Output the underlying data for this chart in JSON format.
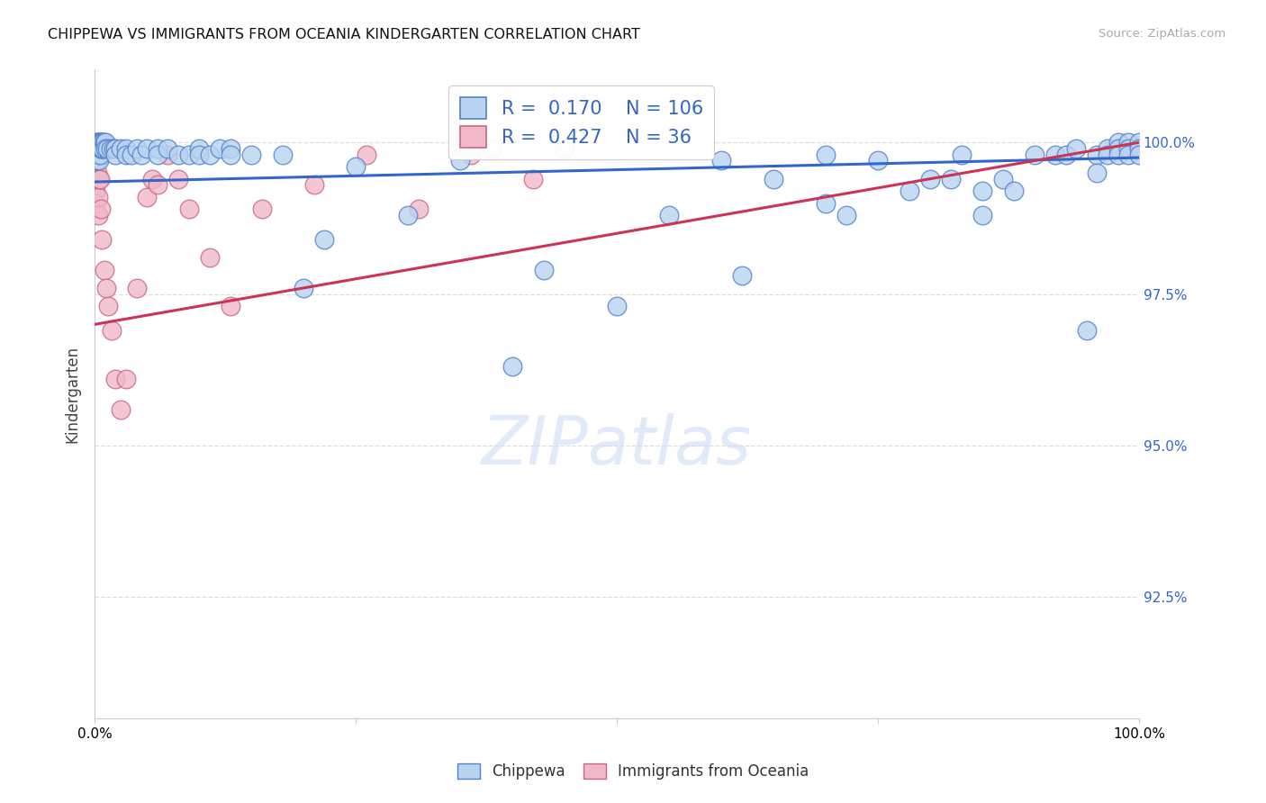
{
  "title": "CHIPPEWA VS IMMIGRANTS FROM OCEANIA KINDERGARTEN CORRELATION CHART",
  "source": "Source: ZipAtlas.com",
  "ylabel": "Kindergarten",
  "ytick_labels": [
    "100.0%",
    "97.5%",
    "95.0%",
    "92.5%"
  ],
  "ytick_values": [
    1.0,
    0.975,
    0.95,
    0.925
  ],
  "xmin": 0.0,
  "xmax": 1.0,
  "ymin": 0.905,
  "ymax": 1.012,
  "legend_blue_label": "Chippewa",
  "legend_pink_label": "Immigrants from Oceania",
  "R_blue": 0.17,
  "N_blue": 106,
  "R_pink": 0.427,
  "N_pink": 36,
  "blue_color": "#b8d4f0",
  "blue_edge_color": "#5580cc",
  "blue_line_color": "#3366cc",
  "pink_color": "#f0b8c8",
  "pink_edge_color": "#cc6680",
  "pink_line_color": "#cc3355",
  "text_color_dark": "#333333",
  "text_color_blue": "#3366cc",
  "grid_color": "#dddddd",
  "blue_scatter": [
    [
      0.001,
      1.0
    ],
    [
      0.001,
      0.999
    ],
    [
      0.001,
      0.998
    ],
    [
      0.002,
      1.0
    ],
    [
      0.002,
      0.999
    ],
    [
      0.002,
      0.998
    ],
    [
      0.002,
      0.997
    ],
    [
      0.003,
      1.0
    ],
    [
      0.003,
      0.999
    ],
    [
      0.003,
      0.998
    ],
    [
      0.004,
      1.0
    ],
    [
      0.004,
      0.999
    ],
    [
      0.004,
      0.998
    ],
    [
      0.004,
      0.997
    ],
    [
      0.005,
      1.0
    ],
    [
      0.005,
      0.999
    ],
    [
      0.005,
      0.998
    ],
    [
      0.006,
      1.0
    ],
    [
      0.006,
      0.999
    ],
    [
      0.007,
      1.0
    ],
    [
      0.007,
      0.999
    ],
    [
      0.008,
      1.0
    ],
    [
      0.008,
      0.999
    ],
    [
      0.009,
      1.0
    ],
    [
      0.01,
      1.0
    ],
    [
      0.01,
      0.999
    ],
    [
      0.012,
      0.999
    ],
    [
      0.015,
      0.999
    ],
    [
      0.018,
      0.999
    ],
    [
      0.02,
      0.999
    ],
    [
      0.02,
      0.998
    ],
    [
      0.025,
      0.999
    ],
    [
      0.03,
      0.999
    ],
    [
      0.03,
      0.998
    ],
    [
      0.035,
      0.998
    ],
    [
      0.04,
      0.999
    ],
    [
      0.045,
      0.998
    ],
    [
      0.05,
      0.999
    ],
    [
      0.06,
      0.999
    ],
    [
      0.06,
      0.998
    ],
    [
      0.07,
      0.999
    ],
    [
      0.08,
      0.998
    ],
    [
      0.09,
      0.998
    ],
    [
      0.1,
      0.999
    ],
    [
      0.1,
      0.998
    ],
    [
      0.11,
      0.998
    ],
    [
      0.12,
      0.999
    ],
    [
      0.13,
      0.999
    ],
    [
      0.13,
      0.998
    ],
    [
      0.15,
      0.998
    ],
    [
      0.18,
      0.998
    ],
    [
      0.2,
      0.976
    ],
    [
      0.22,
      0.984
    ],
    [
      0.25,
      0.996
    ],
    [
      0.3,
      0.988
    ],
    [
      0.35,
      0.997
    ],
    [
      0.38,
      0.999
    ],
    [
      0.4,
      0.963
    ],
    [
      0.43,
      0.979
    ],
    [
      0.45,
      0.999
    ],
    [
      0.5,
      0.973
    ],
    [
      0.55,
      0.988
    ],
    [
      0.6,
      0.997
    ],
    [
      0.62,
      0.978
    ],
    [
      0.65,
      0.994
    ],
    [
      0.7,
      0.998
    ],
    [
      0.7,
      0.99
    ],
    [
      0.72,
      0.988
    ],
    [
      0.75,
      0.997
    ],
    [
      0.78,
      0.992
    ],
    [
      0.8,
      0.994
    ],
    [
      0.82,
      0.994
    ],
    [
      0.83,
      0.998
    ],
    [
      0.85,
      0.992
    ],
    [
      0.85,
      0.988
    ],
    [
      0.87,
      0.994
    ],
    [
      0.88,
      0.992
    ],
    [
      0.9,
      0.998
    ],
    [
      0.92,
      0.998
    ],
    [
      0.93,
      0.998
    ],
    [
      0.94,
      0.999
    ],
    [
      0.95,
      0.969
    ],
    [
      0.96,
      0.998
    ],
    [
      0.96,
      0.995
    ],
    [
      0.97,
      0.999
    ],
    [
      0.97,
      0.998
    ],
    [
      0.98,
      1.0
    ],
    [
      0.98,
      0.999
    ],
    [
      0.98,
      0.998
    ],
    [
      0.99,
      1.0
    ],
    [
      0.99,
      0.999
    ],
    [
      0.99,
      0.998
    ],
    [
      1.0,
      1.0
    ],
    [
      1.0,
      0.999
    ],
    [
      1.0,
      0.998
    ]
  ],
  "pink_scatter": [
    [
      0.001,
      0.994
    ],
    [
      0.001,
      0.992
    ],
    [
      0.001,
      0.99
    ],
    [
      0.002,
      0.998
    ],
    [
      0.002,
      0.995
    ],
    [
      0.003,
      0.994
    ],
    [
      0.003,
      0.991
    ],
    [
      0.003,
      0.988
    ],
    [
      0.004,
      0.998
    ],
    [
      0.004,
      0.994
    ],
    [
      0.005,
      0.994
    ],
    [
      0.006,
      0.989
    ],
    [
      0.007,
      0.984
    ],
    [
      0.009,
      0.979
    ],
    [
      0.011,
      0.976
    ],
    [
      0.013,
      0.973
    ],
    [
      0.016,
      0.969
    ],
    [
      0.02,
      0.961
    ],
    [
      0.025,
      0.956
    ],
    [
      0.03,
      0.961
    ],
    [
      0.04,
      0.976
    ],
    [
      0.05,
      0.991
    ],
    [
      0.055,
      0.994
    ],
    [
      0.06,
      0.993
    ],
    [
      0.07,
      0.998
    ],
    [
      0.08,
      0.994
    ],
    [
      0.09,
      0.989
    ],
    [
      0.11,
      0.981
    ],
    [
      0.13,
      0.973
    ],
    [
      0.16,
      0.989
    ],
    [
      0.21,
      0.993
    ],
    [
      0.26,
      0.998
    ],
    [
      0.31,
      0.989
    ],
    [
      0.36,
      0.998
    ],
    [
      0.42,
      0.994
    ]
  ],
  "blue_trend": [
    0.0,
    1.0,
    0.9935,
    0.9975
  ],
  "pink_trend": [
    0.0,
    1.0,
    0.97,
    1.0
  ]
}
